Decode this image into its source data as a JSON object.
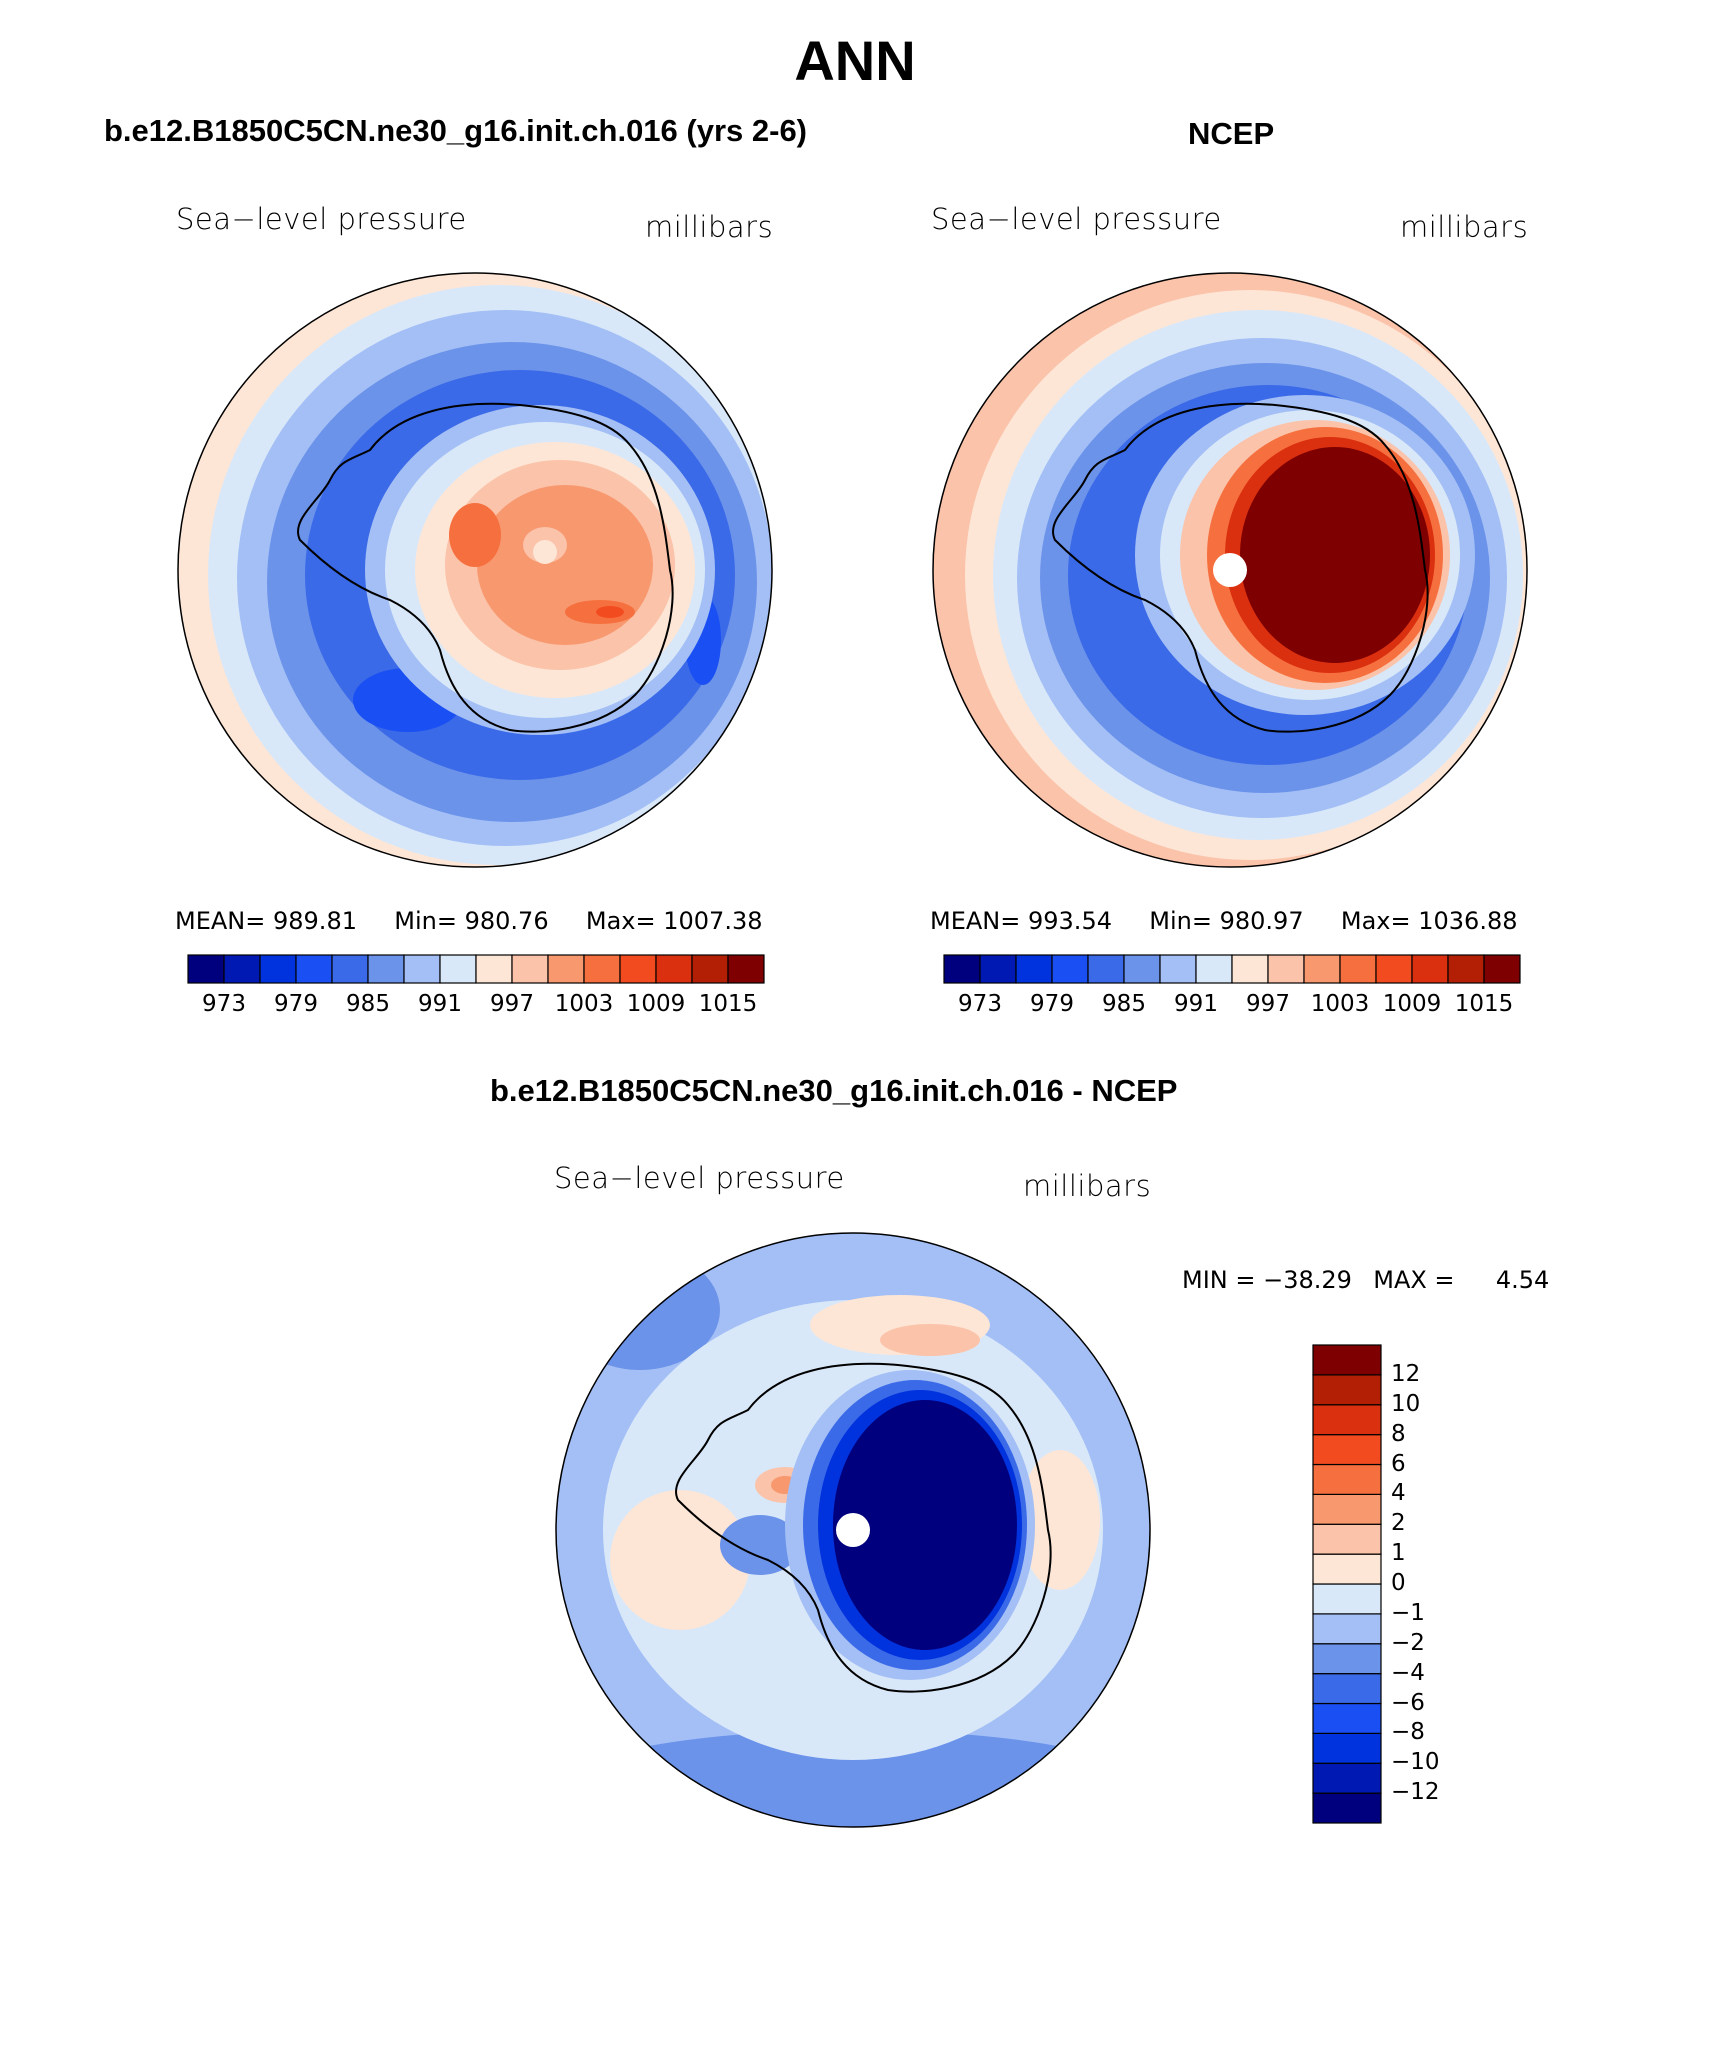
{
  "title": "ANN",
  "panels": {
    "model": {
      "case_title": "b.e12.B1850C5CN.ne30_g16.init.ch.016 (yrs 2-6)",
      "variable": "Sea−level pressure",
      "units": "millibars",
      "stats": {
        "mean": "989.81",
        "min": "980.76",
        "max": "1007.38"
      }
    },
    "obs": {
      "case_title": "NCEP",
      "variable": "Sea−level pressure",
      "units": "millibars",
      "stats": {
        "mean": "993.54",
        "min": "980.97",
        "max": "1036.88"
      }
    },
    "diff": {
      "case_title": "b.e12.B1850C5CN.ne30_g16.init.ch.016 - NCEP",
      "variable": "Sea−level pressure",
      "units": "millibars",
      "stats": {
        "min": "−38.29",
        "max": "4.54"
      }
    }
  },
  "labels": {
    "mean": "MEAN=",
    "min": "Min=",
    "max": "Max=",
    "min_caps": "MIN =",
    "max_caps": "MAX ="
  },
  "colorbar_abs": {
    "colors": [
      "#00007f",
      "#0019b3",
      "#0033dd",
      "#1a4ff3",
      "#3b6ae8",
      "#6c93ea",
      "#a3bff5",
      "#d9e8f9",
      "#fde6d6",
      "#fbc3a9",
      "#f8986f",
      "#f6703f",
      "#f24b1f",
      "#db3010",
      "#b21f05",
      "#7f0000"
    ],
    "tick_labels": [
      "973",
      "979",
      "985",
      "991",
      "997",
      "1003",
      "1009",
      "1015"
    ]
  },
  "colorbar_diff": {
    "colors": [
      "#00007f",
      "#0019b3",
      "#0033dd",
      "#1a4ff3",
      "#3b6ae8",
      "#6c93ea",
      "#a3bff5",
      "#d9e8f9",
      "#fde6d6",
      "#fbc3a9",
      "#f8986f",
      "#f6703f",
      "#f24b1f",
      "#db3010",
      "#b21f05",
      "#7f0000"
    ],
    "tick_labels": [
      "−12",
      "−10",
      "−8",
      "−6",
      "−4",
      "−2",
      "−1",
      "0",
      "1",
      "2",
      "4",
      "6",
      "8",
      "10",
      "12"
    ]
  }
}
